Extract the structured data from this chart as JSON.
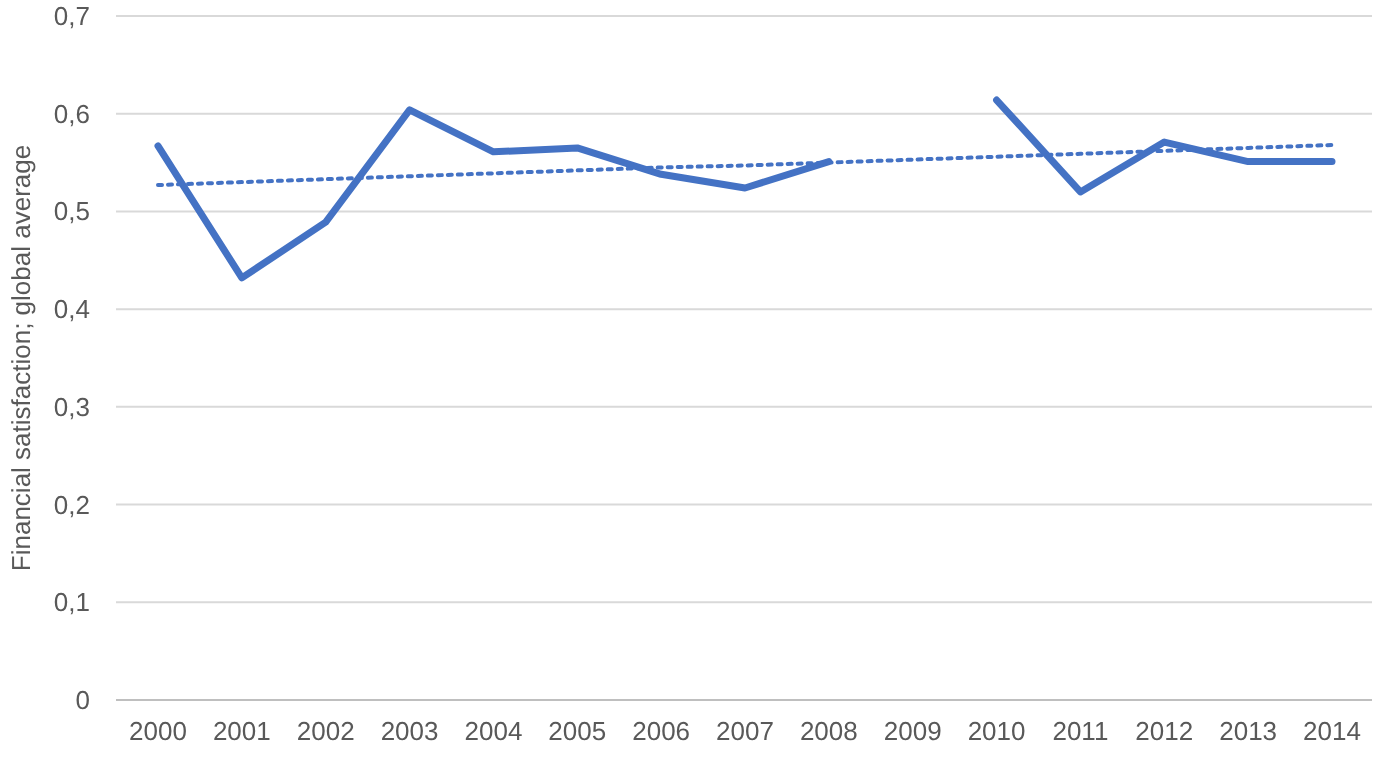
{
  "chart_data": {
    "type": "line",
    "ylabel": "Financial satisfaction; global average",
    "categories": [
      "2000",
      "2001",
      "2002",
      "2003",
      "2004",
      "2005",
      "2006",
      "2007",
      "2008",
      "2009",
      "2010",
      "2011",
      "2012",
      "2013",
      "2014"
    ],
    "series": [
      {
        "color": "#4472c4",
        "values": [
          0.567,
          0.432,
          0.489,
          0.604,
          0.561,
          0.565,
          0.538,
          0.524,
          0.551,
          null,
          0.614,
          0.52,
          0.571,
          0.551,
          0.551
        ]
      },
      {
        "type": "line",
        "color": "#4472c4",
        "line_style": "dotted",
        "values": [
          0.527,
          0.53,
          0.533,
          0.536,
          0.539,
          0.542,
          0.545,
          0.547,
          0.55,
          0.553,
          0.556,
          0.559,
          0.562,
          0.565,
          0.568
        ]
      }
    ],
    "ylim": [
      0,
      0.7
    ],
    "yticks": [
      0,
      {
        "value": 0.1,
        "label": "0,1"
      },
      {
        "value": 0.2,
        "label": "0,2"
      },
      {
        "value": 0.3,
        "label": "0,3"
      },
      {
        "value": 0.4,
        "label": "0,4"
      },
      {
        "value": 0.5,
        "label": "0,5"
      },
      {
        "value": 0.6,
        "label": "0,6"
      },
      {
        "value": 0.7,
        "label": "0,7"
      }
    ],
    "grid": "y",
    "line_style": "solid",
    "marker": "none"
  }
}
